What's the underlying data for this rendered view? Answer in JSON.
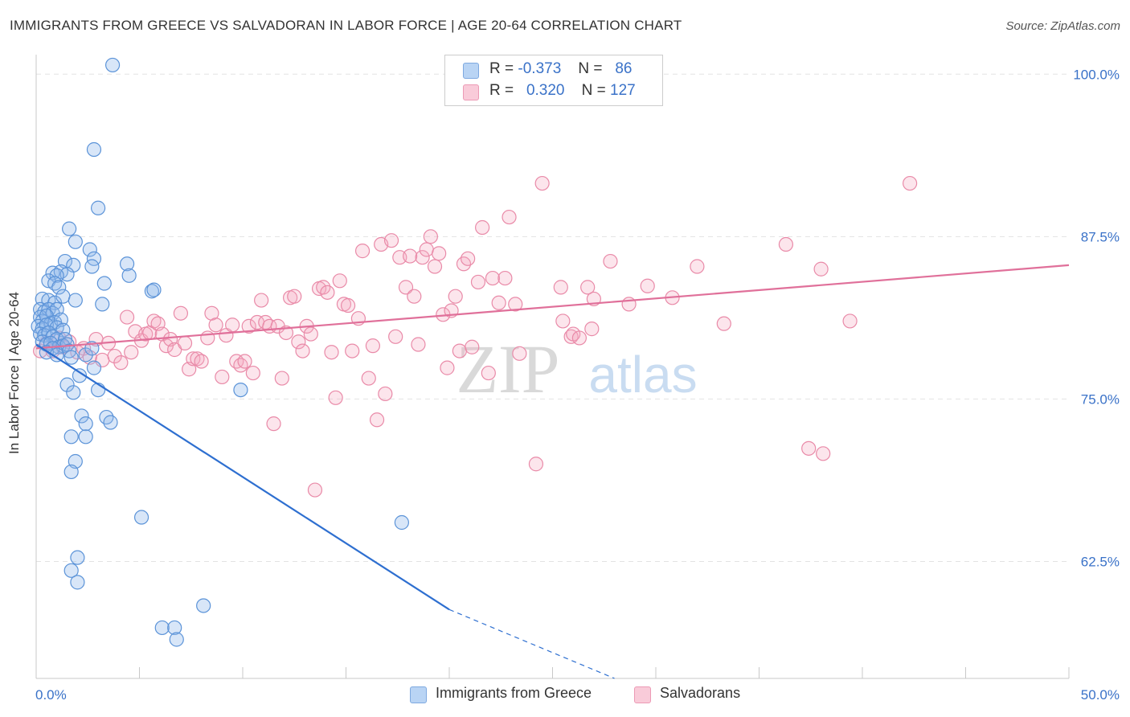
{
  "title": "IMMIGRANTS FROM GREECE VS SALVADORAN IN LABOR FORCE | AGE 20-64 CORRELATION CHART",
  "source": "Source: ZipAtlas.com",
  "watermark": {
    "zip": "ZIP",
    "atlas": "atlas"
  },
  "legend_top": {
    "rows": [
      {
        "r_label": "R =",
        "r_value": "-0.373",
        "n_label": "N =",
        "n_value": "86",
        "color": "#a9c8f0"
      },
      {
        "r_label": "R =",
        "r_value": "0.320",
        "n_label": "N =",
        "n_value": "127",
        "color": "#f5b5c8"
      }
    ]
  },
  "bottom_legend": [
    {
      "label": "Immigrants from Greece",
      "color": "#a9c8f0"
    },
    {
      "label": "Salvadorans",
      "color": "#f5b5c8"
    }
  ],
  "colors": {
    "blue_fill": "rgba(142,184,236,0.35)",
    "blue_stroke": "#5b93d8",
    "blue_line": "#2e6fd0",
    "pink_fill": "rgba(245,170,192,0.30)",
    "pink_stroke": "#e98aa8",
    "pink_line": "#e0709a",
    "grid": "#e3e3e3",
    "tick_label": "#3a72c8"
  },
  "chart_data": {
    "type": "scatter",
    "xlabel": "",
    "ylabel": "In Labor Force | Age 20-64",
    "xlim": [
      0,
      50
    ],
    "ylim": [
      53.5,
      101.5
    ],
    "x_tick_labels": [
      {
        "value": 0,
        "label": "0.0%"
      },
      {
        "value": 50,
        "label": "50.0%"
      }
    ],
    "y_tick_labels": [
      {
        "value": 100,
        "label": "100.0%"
      },
      {
        "value": 87.5,
        "label": "87.5%"
      },
      {
        "value": 75,
        "label": "75.0%"
      },
      {
        "value": 62.5,
        "label": "62.5%"
      }
    ],
    "grid": "horizontal dashed",
    "legend_position": "top-center",
    "series": [
      {
        "name": "Immigrants from Greece",
        "color": "#5b93d8",
        "points": [
          [
            3.7,
            100.7
          ],
          [
            2.8,
            94.2
          ],
          [
            3.0,
            89.7
          ],
          [
            1.6,
            88.1
          ],
          [
            1.9,
            87.1
          ],
          [
            2.6,
            86.5
          ],
          [
            2.8,
            85.8
          ],
          [
            1.4,
            85.6
          ],
          [
            1.8,
            85.3
          ],
          [
            2.7,
            85.2
          ],
          [
            4.4,
            85.4
          ],
          [
            0.8,
            84.7
          ],
          [
            1.2,
            84.8
          ],
          [
            1.5,
            84.6
          ],
          [
            1.0,
            84.5
          ],
          [
            4.5,
            84.5
          ],
          [
            0.6,
            84.1
          ],
          [
            0.9,
            83.9
          ],
          [
            1.1,
            83.6
          ],
          [
            3.3,
            83.9
          ],
          [
            5.6,
            83.3
          ],
          [
            5.7,
            83.4
          ],
          [
            0.3,
            82.7
          ],
          [
            0.6,
            82.6
          ],
          [
            0.9,
            82.4
          ],
          [
            1.3,
            82.9
          ],
          [
            1.9,
            82.6
          ],
          [
            0.2,
            81.9
          ],
          [
            0.4,
            81.7
          ],
          [
            0.6,
            81.9
          ],
          [
            0.8,
            81.6
          ],
          [
            1.0,
            81.9
          ],
          [
            3.2,
            82.3
          ],
          [
            0.2,
            81.3
          ],
          [
            0.3,
            81.0
          ],
          [
            0.5,
            81.4
          ],
          [
            0.7,
            80.8
          ],
          [
            0.9,
            80.9
          ],
          [
            1.2,
            81.1
          ],
          [
            0.1,
            80.6
          ],
          [
            0.3,
            80.4
          ],
          [
            0.5,
            80.7
          ],
          [
            1.0,
            80.5
          ],
          [
            1.3,
            80.3
          ],
          [
            0.2,
            80.0
          ],
          [
            0.4,
            79.9
          ],
          [
            0.6,
            80.1
          ],
          [
            0.8,
            79.8
          ],
          [
            1.0,
            79.6
          ],
          [
            1.4,
            79.6
          ],
          [
            0.3,
            79.4
          ],
          [
            0.5,
            79.2
          ],
          [
            0.7,
            79.3
          ],
          [
            1.1,
            79.0
          ],
          [
            1.3,
            79.1
          ],
          [
            1.5,
            79.2
          ],
          [
            0.8,
            78.9
          ],
          [
            1.6,
            78.7
          ],
          [
            0.5,
            78.6
          ],
          [
            1.0,
            78.4
          ],
          [
            1.7,
            78.2
          ],
          [
            2.4,
            78.4
          ],
          [
            2.7,
            78.9
          ],
          [
            2.8,
            77.4
          ],
          [
            2.1,
            76.8
          ],
          [
            1.5,
            76.1
          ],
          [
            1.8,
            75.5
          ],
          [
            3.0,
            75.7
          ],
          [
            9.9,
            75.7
          ],
          [
            2.2,
            73.7
          ],
          [
            3.4,
            73.6
          ],
          [
            2.4,
            73.1
          ],
          [
            3.6,
            73.2
          ],
          [
            1.7,
            72.1
          ],
          [
            2.4,
            72.1
          ],
          [
            1.9,
            70.2
          ],
          [
            1.7,
            69.4
          ],
          [
            5.1,
            65.9
          ],
          [
            17.7,
            65.5
          ],
          [
            2.0,
            62.8
          ],
          [
            1.7,
            61.8
          ],
          [
            2.0,
            60.9
          ],
          [
            6.1,
            57.4
          ],
          [
            6.7,
            57.4
          ],
          [
            6.8,
            56.5
          ],
          [
            8.1,
            59.1
          ]
        ]
      },
      {
        "name": "Salvadorans",
        "color": "#e98aa8",
        "points": [
          [
            0.2,
            78.7
          ],
          [
            0.5,
            79.3
          ],
          [
            0.8,
            78.7
          ],
          [
            1.1,
            79.7
          ],
          [
            1.3,
            79.0
          ],
          [
            1.6,
            79.4
          ],
          [
            2.0,
            78.6
          ],
          [
            2.3,
            78.9
          ],
          [
            2.6,
            78.2
          ],
          [
            2.9,
            79.6
          ],
          [
            3.2,
            78.0
          ],
          [
            3.5,
            79.3
          ],
          [
            3.8,
            78.3
          ],
          [
            4.1,
            77.8
          ],
          [
            4.4,
            81.3
          ],
          [
            4.6,
            78.6
          ],
          [
            4.8,
            80.2
          ],
          [
            5.1,
            79.5
          ],
          [
            5.3,
            80.0
          ],
          [
            5.5,
            80.1
          ],
          [
            5.7,
            81.0
          ],
          [
            5.9,
            80.8
          ],
          [
            6.1,
            80.0
          ],
          [
            6.3,
            79.1
          ],
          [
            6.5,
            79.6
          ],
          [
            6.7,
            78.8
          ],
          [
            7.0,
            81.6
          ],
          [
            7.2,
            79.3
          ],
          [
            7.4,
            77.3
          ],
          [
            7.6,
            78.1
          ],
          [
            7.8,
            78.1
          ],
          [
            8.0,
            77.9
          ],
          [
            8.3,
            79.7
          ],
          [
            8.5,
            81.6
          ],
          [
            8.7,
            80.7
          ],
          [
            9.0,
            76.7
          ],
          [
            9.2,
            79.9
          ],
          [
            9.5,
            80.7
          ],
          [
            9.7,
            77.9
          ],
          [
            9.9,
            77.6
          ],
          [
            10.1,
            77.9
          ],
          [
            10.3,
            80.6
          ],
          [
            10.5,
            77.0
          ],
          [
            10.7,
            80.9
          ],
          [
            10.9,
            82.6
          ],
          [
            11.1,
            80.9
          ],
          [
            11.3,
            80.6
          ],
          [
            11.5,
            73.1
          ],
          [
            11.7,
            80.6
          ],
          [
            11.9,
            76.6
          ],
          [
            12.1,
            80.1
          ],
          [
            12.3,
            82.8
          ],
          [
            12.5,
            82.9
          ],
          [
            12.7,
            79.4
          ],
          [
            12.9,
            78.7
          ],
          [
            13.1,
            80.6
          ],
          [
            13.3,
            80.0
          ],
          [
            13.5,
            68.0
          ],
          [
            13.7,
            83.5
          ],
          [
            13.9,
            83.6
          ],
          [
            14.1,
            83.2
          ],
          [
            14.3,
            78.6
          ],
          [
            14.5,
            75.1
          ],
          [
            14.7,
            84.1
          ],
          [
            14.9,
            82.3
          ],
          [
            15.1,
            82.2
          ],
          [
            15.3,
            78.7
          ],
          [
            15.6,
            81.2
          ],
          [
            15.8,
            86.4
          ],
          [
            16.1,
            76.6
          ],
          [
            16.3,
            79.1
          ],
          [
            16.5,
            73.4
          ],
          [
            16.7,
            86.9
          ],
          [
            16.9,
            75.4
          ],
          [
            17.2,
            87.2
          ],
          [
            17.4,
            79.8
          ],
          [
            17.6,
            85.9
          ],
          [
            17.9,
            83.6
          ],
          [
            18.1,
            86.0
          ],
          [
            18.3,
            82.9
          ],
          [
            18.5,
            79.2
          ],
          [
            18.7,
            85.9
          ],
          [
            18.9,
            86.5
          ],
          [
            19.1,
            87.5
          ],
          [
            19.3,
            85.2
          ],
          [
            19.5,
            86.2
          ],
          [
            19.7,
            81.5
          ],
          [
            19.9,
            77.4
          ],
          [
            20.1,
            81.8
          ],
          [
            20.3,
            82.9
          ],
          [
            20.5,
            78.7
          ],
          [
            20.7,
            85.4
          ],
          [
            20.9,
            85.8
          ],
          [
            21.1,
            79.0
          ],
          [
            21.4,
            84.0
          ],
          [
            21.6,
            88.2
          ],
          [
            21.9,
            77.0
          ],
          [
            22.1,
            84.3
          ],
          [
            22.4,
            82.4
          ],
          [
            22.7,
            84.3
          ],
          [
            22.9,
            89.0
          ],
          [
            23.2,
            82.3
          ],
          [
            23.4,
            78.5
          ],
          [
            24.2,
            70.0
          ],
          [
            24.5,
            91.6
          ],
          [
            25.4,
            83.6
          ],
          [
            25.5,
            81.0
          ],
          [
            25.9,
            79.8
          ],
          [
            26.0,
            80.0
          ],
          [
            26.3,
            79.7
          ],
          [
            26.7,
            83.6
          ],
          [
            26.9,
            80.4
          ],
          [
            27.0,
            82.7
          ],
          [
            27.8,
            85.6
          ],
          [
            28.7,
            82.3
          ],
          [
            29.6,
            83.7
          ],
          [
            30.8,
            82.8
          ],
          [
            32.0,
            85.2
          ],
          [
            33.3,
            80.8
          ],
          [
            36.3,
            86.9
          ],
          [
            37.4,
            71.2
          ],
          [
            38.0,
            85.0
          ],
          [
            38.1,
            70.8
          ],
          [
            39.4,
            81.0
          ],
          [
            42.3,
            91.6
          ]
        ]
      }
    ],
    "trend_lines": [
      {
        "series": "Immigrants from Greece",
        "from": [
          0,
          79.2
        ],
        "to": [
          20.0,
          58.8
        ],
        "dashed_to": [
          28.0,
          50.6
        ]
      },
      {
        "series": "Salvadorans",
        "from": [
          0,
          78.9
        ],
        "to": [
          50,
          85.3
        ]
      }
    ]
  }
}
